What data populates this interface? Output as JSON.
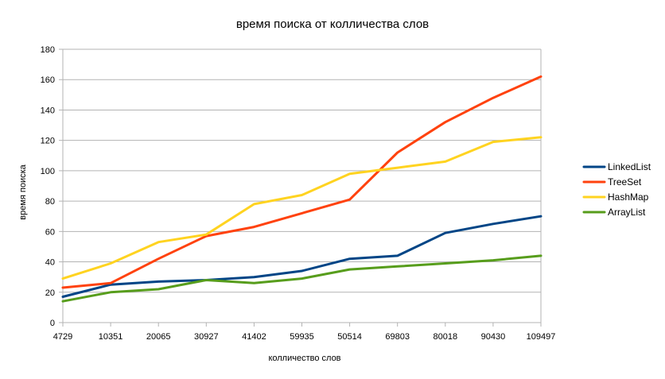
{
  "chart_data": {
    "type": "line",
    "title": "время поиска от колличества слов",
    "xlabel": "колличество слов",
    "ylabel": "время поиска",
    "categories": [
      "4729",
      "10351",
      "20065",
      "30927",
      "41402",
      "59935",
      "50514",
      "69803",
      "80018",
      "90430",
      "109497"
    ],
    "ylim": [
      0,
      180
    ],
    "yticks": [
      0,
      20,
      40,
      60,
      80,
      100,
      120,
      140,
      160,
      180
    ],
    "grid": "horizontal",
    "legend_position": "right",
    "series": [
      {
        "name": "LinkedList",
        "color": "#004586",
        "values": [
          17,
          25,
          27,
          28,
          30,
          34,
          42,
          44,
          59,
          65,
          70
        ]
      },
      {
        "name": "TreeSet",
        "color": "#ff420e",
        "values": [
          23,
          26,
          42,
          57,
          63,
          72,
          81,
          112,
          132,
          148,
          162
        ]
      },
      {
        "name": "HashMap",
        "color": "#ffd320",
        "values": [
          29,
          39,
          53,
          58,
          78,
          84,
          98,
          102,
          106,
          119,
          122
        ]
      },
      {
        "name": "ArrayList",
        "color": "#579d1c",
        "values": [
          14,
          20,
          22,
          28,
          26,
          29,
          35,
          37,
          39,
          41,
          44
        ]
      }
    ]
  }
}
